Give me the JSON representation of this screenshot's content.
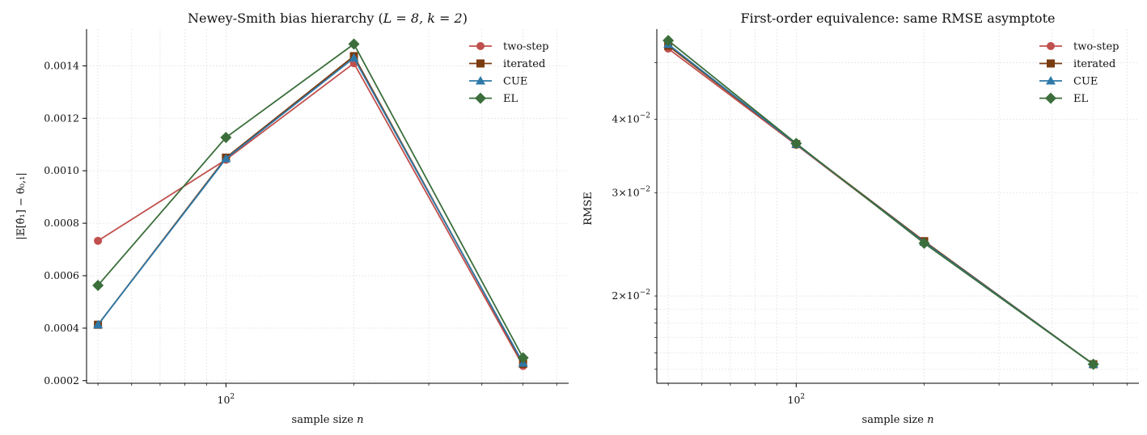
{
  "chart_data": [
    {
      "type": "line",
      "title_plain": "Newey-Smith bias hierarchy  (",
      "title_math": "L = 8, k = 2",
      "title_close": ")",
      "xlabel_plain": "sample size ",
      "xlabel_var": "n",
      "ylabel": "|𝔼[θ̂₁] − θ₀,₁|",
      "xscale": "log",
      "yscale": "linear",
      "x": [
        50,
        100,
        200,
        500
      ],
      "xlim": [
        47,
        640
      ],
      "ylim": [
        0.00019,
        0.00154
      ],
      "yticks": [
        0.0002,
        0.0004,
        0.0006,
        0.0008,
        0.001,
        0.0012,
        0.0014
      ],
      "ytick_labels": [
        "0.0002",
        "0.0004",
        "0.0006",
        "0.0008",
        "0.0010",
        "0.0012",
        "0.0014"
      ],
      "xtick_label": "10",
      "xtick_exp": "2",
      "grid": true,
      "legend_position": "top-right",
      "series": [
        {
          "name": "two-step",
          "values": [
            0.000733,
            0.001042,
            0.00141,
            0.000256
          ],
          "color": "#c0504d",
          "marker": "circle"
        },
        {
          "name": "iterated",
          "values": [
            0.000413,
            0.00105,
            0.001437,
            0.000264
          ],
          "color": "#7a3b10",
          "marker": "square"
        },
        {
          "name": "CUE",
          "values": [
            0.000413,
            0.001046,
            0.00143,
            0.000267
          ],
          "color": "#2e78a8",
          "marker": "triangle"
        },
        {
          "name": "EL",
          "values": [
            0.000563,
            0.001127,
            0.001483,
            0.000287
          ],
          "color": "#3b6e3b",
          "marker": "diamond"
        }
      ]
    },
    {
      "type": "line",
      "title_plain": "First-order equivalence: same RMSE asymptote",
      "xlabel_plain": "sample size ",
      "xlabel_var": "n",
      "ylabel": "RMSE",
      "xscale": "log",
      "yscale": "log",
      "x": [
        50,
        100,
        200,
        500
      ],
      "xlim": [
        47,
        640
      ],
      "ylim": [
        0.0142,
        0.057
      ],
      "yticks": [
        0.02,
        0.03,
        0.04
      ],
      "ytick_labels": [
        {
          "base": "2×10",
          "exp": "−2"
        },
        {
          "base": "3×10",
          "exp": "−2"
        },
        {
          "base": "4×10",
          "exp": "−2"
        }
      ],
      "xtick_label": "10",
      "xtick_exp": "2",
      "grid": true,
      "legend_position": "top-right",
      "series": [
        {
          "name": "two-step",
          "values": [
            0.0528,
            0.0362,
            0.0247,
            0.0153
          ],
          "color": "#c0504d",
          "marker": "circle"
        },
        {
          "name": "iterated",
          "values": [
            0.0534,
            0.0363,
            0.0248,
            0.0153
          ],
          "color": "#7a3b10",
          "marker": "square"
        },
        {
          "name": "CUE",
          "values": [
            0.0537,
            0.0363,
            0.0247,
            0.0153
          ],
          "color": "#2e78a8",
          "marker": "triangle"
        },
        {
          "name": "EL",
          "values": [
            0.0545,
            0.0364,
            0.0246,
            0.0153
          ],
          "color": "#3b6e3b",
          "marker": "diamond"
        }
      ]
    }
  ]
}
